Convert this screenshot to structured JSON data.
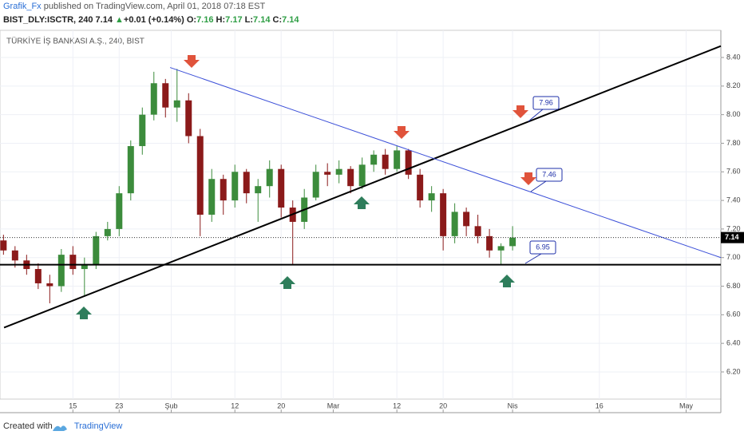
{
  "header": {
    "author": "Grafik_Fx",
    "published": "published on TradingView.com, April 01, 2018 07:18 EST",
    "symbol": "BIST_DLY:ISCTR, 240",
    "price": "7.14",
    "arrow": "▲",
    "change": "+0.01 (+0.14%)",
    "o_key": "O:",
    "o": "7.16",
    "h_key": "H:",
    "h": "7.17",
    "l_key": "L:",
    "l": "7.14",
    "c_key": "C:",
    "c": "7.14"
  },
  "footer": {
    "created": "Created with",
    "brand": "TradingView"
  },
  "annotations": [
    "7.96",
    "7.46",
    "6.95"
  ],
  "chart_data": {
    "type": "candlestick",
    "title": "TÜRKİYE İŞ BANKASI A.Ş., 240, BIST",
    "up_color": "#3c8c3c",
    "down_color": "#8b1a1a",
    "grid": true,
    "x": [
      3,
      5,
      7,
      9,
      11,
      13,
      15,
      17,
      19,
      21,
      23,
      25,
      27,
      29,
      31,
      33,
      35,
      37,
      39,
      41,
      43,
      45,
      47,
      49,
      51,
      53,
      55,
      57,
      59,
      61,
      63,
      65,
      67,
      69,
      71,
      73,
      75,
      77,
      79,
      81,
      83,
      85,
      87,
      89,
      91
    ],
    "open": [
      7.12,
      7.05,
      6.98,
      6.92,
      6.82,
      6.8,
      7.02,
      6.92,
      6.95,
      7.15,
      7.2,
      7.45,
      7.78,
      8.0,
      8.22,
      8.05,
      8.1,
      7.85,
      7.3,
      7.55,
      7.4,
      7.6,
      7.45,
      7.5,
      7.62,
      7.35,
      7.25,
      7.42,
      7.6,
      7.58,
      7.62,
      7.5,
      7.65,
      7.72,
      7.62,
      7.75,
      7.58,
      7.4,
      7.45,
      7.15,
      7.32,
      7.22,
      7.15,
      7.05,
      7.08
    ],
    "high": [
      7.16,
      7.08,
      7.02,
      6.96,
      6.88,
      7.06,
      7.08,
      7.0,
      7.18,
      7.25,
      7.5,
      7.82,
      8.05,
      8.3,
      8.25,
      8.32,
      8.15,
      7.9,
      7.62,
      7.58,
      7.65,
      7.62,
      7.55,
      7.68,
      7.65,
      7.4,
      7.48,
      7.65,
      7.66,
      7.68,
      7.64,
      7.7,
      7.75,
      7.76,
      7.78,
      7.76,
      7.62,
      7.5,
      7.48,
      7.38,
      7.35,
      7.3,
      7.2,
      7.1,
      7.22
    ],
    "low": [
      7.02,
      6.93,
      6.88,
      6.78,
      6.68,
      6.76,
      6.88,
      6.73,
      6.92,
      7.12,
      7.15,
      7.4,
      7.72,
      7.96,
      7.98,
      7.95,
      7.8,
      7.15,
      7.25,
      7.3,
      7.35,
      7.38,
      7.25,
      7.42,
      7.28,
      6.95,
      7.2,
      7.4,
      7.5,
      7.52,
      7.45,
      7.48,
      7.6,
      7.58,
      7.6,
      7.55,
      7.35,
      7.32,
      7.05,
      7.1,
      7.15,
      7.1,
      7.0,
      6.95,
      7.05
    ],
    "close": [
      7.05,
      6.98,
      6.92,
      6.82,
      6.8,
      7.02,
      6.92,
      6.95,
      7.15,
      7.2,
      7.45,
      7.78,
      8.0,
      8.22,
      8.05,
      8.1,
      7.85,
      7.3,
      7.55,
      7.4,
      7.6,
      7.45,
      7.5,
      7.62,
      7.35,
      7.25,
      7.42,
      7.6,
      7.58,
      7.62,
      7.5,
      7.65,
      7.72,
      7.62,
      7.75,
      7.58,
      7.4,
      7.45,
      7.15,
      7.32,
      7.22,
      7.15,
      7.05,
      7.08,
      7.14
    ],
    "trendlines": [
      {
        "x": [
          3.1,
          127
        ],
        "y": [
          6.51,
          8.48
        ],
        "color": "#000000"
      },
      {
        "x": [
          31.8,
          127
        ],
        "y": [
          8.33,
          7.0
        ],
        "color": "#3b4fd8"
      },
      {
        "x": [
          2.4,
          127
        ],
        "y": [
          6.95,
          6.95
        ],
        "color": "#000000"
      }
    ],
    "last_label": "7.14",
    "xlim": [
      2.4,
      127
    ],
    "ylim": [
      6.01,
      8.59
    ],
    "xticks": [
      {
        "value": 15,
        "label": "15"
      },
      {
        "value": 23,
        "label": "23"
      },
      {
        "value": 32,
        "label": "Şub"
      },
      {
        "value": 43,
        "label": "12"
      },
      {
        "value": 51,
        "label": "20"
      },
      {
        "value": 60,
        "label": "Mar"
      },
      {
        "value": 71,
        "label": "12"
      },
      {
        "value": 79,
        "label": "20"
      },
      {
        "value": 91,
        "label": "Nis"
      },
      {
        "value": 106,
        "label": "16"
      },
      {
        "value": 121,
        "label": "May"
      }
    ],
    "yticks": [
      {
        "value": 6.2,
        "label": "6.20"
      },
      {
        "value": 6.4,
        "label": "6.40"
      },
      {
        "value": 6.6,
        "label": "6.60"
      },
      {
        "value": 6.8,
        "label": "6.80"
      },
      {
        "value": 7.0,
        "label": "7.00"
      },
      {
        "value": 7.2,
        "label": "7.20"
      },
      {
        "value": 7.4,
        "label": "7.40"
      },
      {
        "value": 7.6,
        "label": "7.60"
      },
      {
        "value": 7.8,
        "label": "7.80"
      },
      {
        "value": 8.0,
        "label": "8.00"
      },
      {
        "value": 8.2,
        "label": "8.20"
      },
      {
        "value": 8.4,
        "label": "8.40"
      }
    ]
  }
}
